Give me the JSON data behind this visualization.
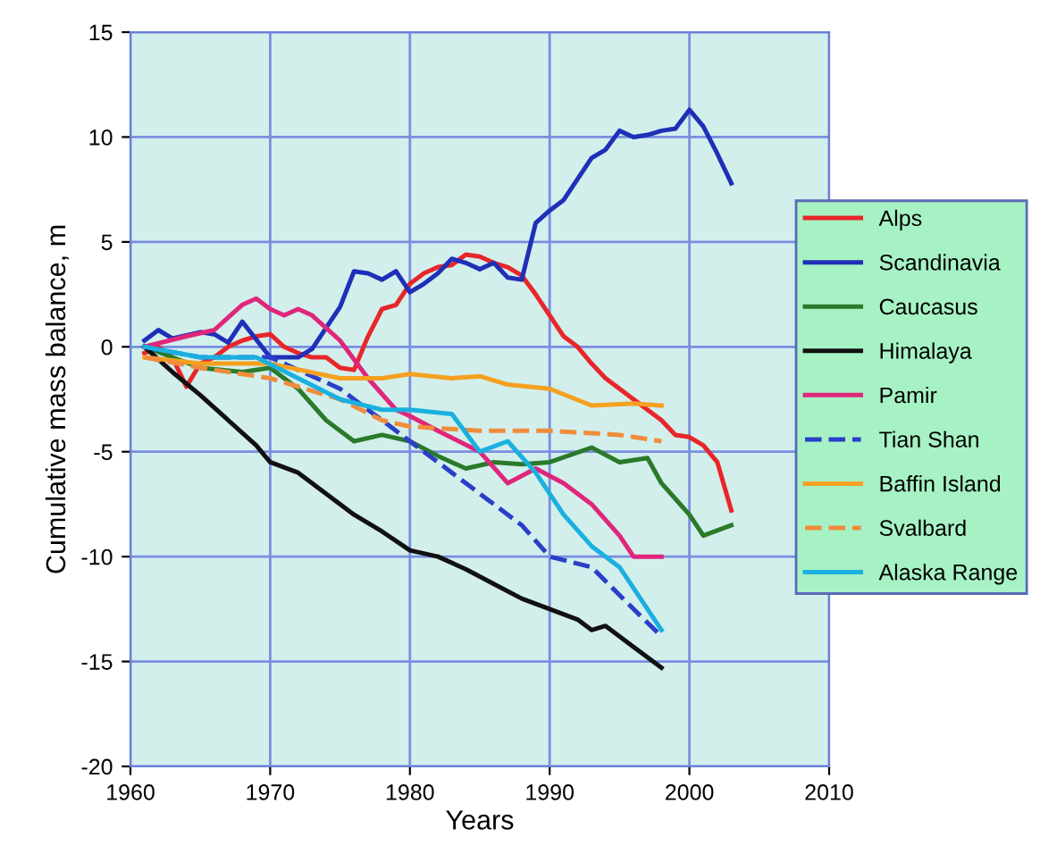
{
  "chart_data": {
    "type": "line",
    "xlabel": "Years",
    "ylabel": "Cumulative mass balance, m",
    "xlim": [
      1960,
      2010
    ],
    "xticks": [
      1960,
      1970,
      1980,
      1990,
      2000,
      2010
    ],
    "ylim": [
      -20,
      15
    ],
    "yticks": [
      -20,
      -15,
      -10,
      -5,
      0,
      5,
      10,
      15
    ],
    "grid": true,
    "legend": "right",
    "series": [
      {
        "name": "Alps",
        "color": "#e8262a",
        "line_style": "solid",
        "x": [
          1961,
          1962,
          1963,
          1964,
          1965,
          1966,
          1967,
          1968,
          1969,
          1970,
          1971,
          1972,
          1973,
          1974,
          1975,
          1976,
          1977,
          1978,
          1979,
          1980,
          1981,
          1982,
          1983,
          1984,
          1985,
          1986,
          1987,
          1988,
          1989,
          1990,
          1991,
          1992,
          1993,
          1994,
          1995,
          1996,
          1997,
          1998,
          1999,
          2000,
          2001,
          2002,
          2003
        ],
        "values": [
          -0.3,
          0,
          -0.5,
          -1.9,
          -0.8,
          -0.5,
          0,
          0.3,
          0.5,
          0.6,
          0,
          -0.3,
          -0.5,
          -0.5,
          -1.0,
          -1.1,
          0.5,
          1.8,
          2.0,
          3.0,
          3.5,
          3.8,
          3.9,
          4.4,
          4.3,
          4.0,
          3.8,
          3.4,
          2.5,
          1.5,
          0.5,
          0,
          -0.8,
          -1.5,
          -2.0,
          -2.5,
          -3.0,
          -3.5,
          -4.2,
          -4.3,
          -4.7,
          -5.5,
          -7.8
        ]
      },
      {
        "name": "Scandinavia",
        "color": "#1f2fb8",
        "line_style": "solid",
        "x": [
          1961,
          1962,
          1963,
          1965,
          1966,
          1967,
          1968,
          1970,
          1972,
          1973,
          1975,
          1976,
          1977,
          1978,
          1979,
          1980,
          1981,
          1982,
          1983,
          1984,
          1985,
          1986,
          1987,
          1988,
          1989,
          1990,
          1991,
          1992,
          1993,
          1994,
          1995,
          1996,
          1997,
          1998,
          1999,
          2000,
          2001,
          2002,
          2003
        ],
        "values": [
          0.3,
          0.8,
          0.4,
          0.7,
          0.6,
          0.2,
          1.2,
          -0.5,
          -0.5,
          -0.1,
          1.9,
          3.6,
          3.5,
          3.2,
          3.6,
          2.6,
          3.0,
          3.5,
          4.2,
          4.0,
          3.7,
          4.0,
          3.3,
          3.2,
          5.9,
          6.5,
          7.0,
          8.0,
          9.0,
          9.4,
          10.3,
          10.0,
          10.1,
          10.3,
          10.4,
          11.3,
          10.5,
          9.2,
          7.8
        ]
      },
      {
        "name": "Caucasus",
        "color": "#2a7a2a",
        "line_style": "solid",
        "x": [
          1961,
          1963,
          1965,
          1968,
          1970,
          1972,
          1974,
          1976,
          1978,
          1980,
          1982,
          1984,
          1986,
          1988,
          1990,
          1993,
          1995,
          1997,
          1998,
          2000,
          2001,
          2003
        ],
        "values": [
          0,
          -0.5,
          -1.0,
          -1.2,
          -1.0,
          -2.0,
          -3.5,
          -4.5,
          -4.2,
          -4.5,
          -5.2,
          -5.8,
          -5.5,
          -5.6,
          -5.5,
          -4.8,
          -5.5,
          -5.3,
          -6.5,
          -8.0,
          -9.0,
          -8.5
        ]
      },
      {
        "name": "Himalaya",
        "color": "#111111",
        "line_style": "solid",
        "x": [
          1961,
          1963,
          1965,
          1967,
          1969,
          1970,
          1972,
          1974,
          1976,
          1978,
          1980,
          1982,
          1984,
          1986,
          1988,
          1990,
          1992,
          1993,
          1994,
          1996,
          1998
        ],
        "values": [
          0,
          -1.2,
          -2.3,
          -3.5,
          -4.7,
          -5.5,
          -6.0,
          -7.0,
          -8.0,
          -8.8,
          -9.7,
          -10.0,
          -10.6,
          -11.3,
          -12.0,
          -12.5,
          -13.0,
          -13.5,
          -13.3,
          -14.3,
          -15.3
        ]
      },
      {
        "name": "Pamir",
        "color": "#e0267a",
        "line_style": "solid",
        "x": [
          1961,
          1964,
          1966,
          1968,
          1969,
          1970,
          1971,
          1972,
          1973,
          1975,
          1977,
          1979,
          1980,
          1982,
          1985,
          1987,
          1989,
          1991,
          1993,
          1995,
          1996,
          1998
        ],
        "values": [
          0,
          0.5,
          0.8,
          2.0,
          2.3,
          1.8,
          1.5,
          1.8,
          1.5,
          0.3,
          -1.5,
          -3.0,
          -3.3,
          -4.0,
          -5.0,
          -6.5,
          -5.8,
          -6.5,
          -7.5,
          -9.0,
          -10.0,
          -10.0
        ]
      },
      {
        "name": "Tian Shan",
        "color": "#2a3fc8",
        "line_style": "dashed",
        "x": [
          1961,
          1965,
          1970,
          1975,
          1978,
          1980,
          1982,
          1985,
          1988,
          1990,
          1993,
          1996,
          1998
        ],
        "values": [
          0,
          -0.5,
          -0.5,
          -2.0,
          -3.5,
          -4.5,
          -5.5,
          -7.0,
          -8.5,
          -10.0,
          -10.5,
          -12.5,
          -13.8
        ]
      },
      {
        "name": "Baffin Island",
        "color": "#f5a020",
        "line_style": "solid",
        "x": [
          1961,
          1965,
          1970,
          1975,
          1978,
          1980,
          1983,
          1985,
          1987,
          1990,
          1993,
          1996,
          1998
        ],
        "values": [
          -0.5,
          -0.8,
          -0.8,
          -1.5,
          -1.5,
          -1.3,
          -1.5,
          -1.4,
          -1.8,
          -2.0,
          -2.8,
          -2.7,
          -2.8
        ]
      },
      {
        "name": "Svalbard",
        "color": "#f08c3c",
        "line_style": "dashed",
        "x": [
          1961,
          1965,
          1970,
          1975,
          1978,
          1980,
          1985,
          1990,
          1995,
          1998
        ],
        "values": [
          -0.5,
          -1.0,
          -1.5,
          -2.5,
          -3.5,
          -3.8,
          -4.0,
          -4.0,
          -4.2,
          -4.5
        ]
      },
      {
        "name": "Alaska Range",
        "color": "#1ab0e0",
        "line_style": "solid",
        "x": [
          1961,
          1965,
          1969,
          1972,
          1975,
          1978,
          1980,
          1983,
          1985,
          1987,
          1989,
          1991,
          1993,
          1995,
          1997,
          1998
        ],
        "values": [
          0,
          -0.5,
          -0.5,
          -1.5,
          -2.5,
          -3.0,
          -3.0,
          -3.2,
          -5.0,
          -4.5,
          -6.0,
          -8.0,
          -9.5,
          -10.5,
          -12.5,
          -13.5
        ]
      }
    ]
  }
}
